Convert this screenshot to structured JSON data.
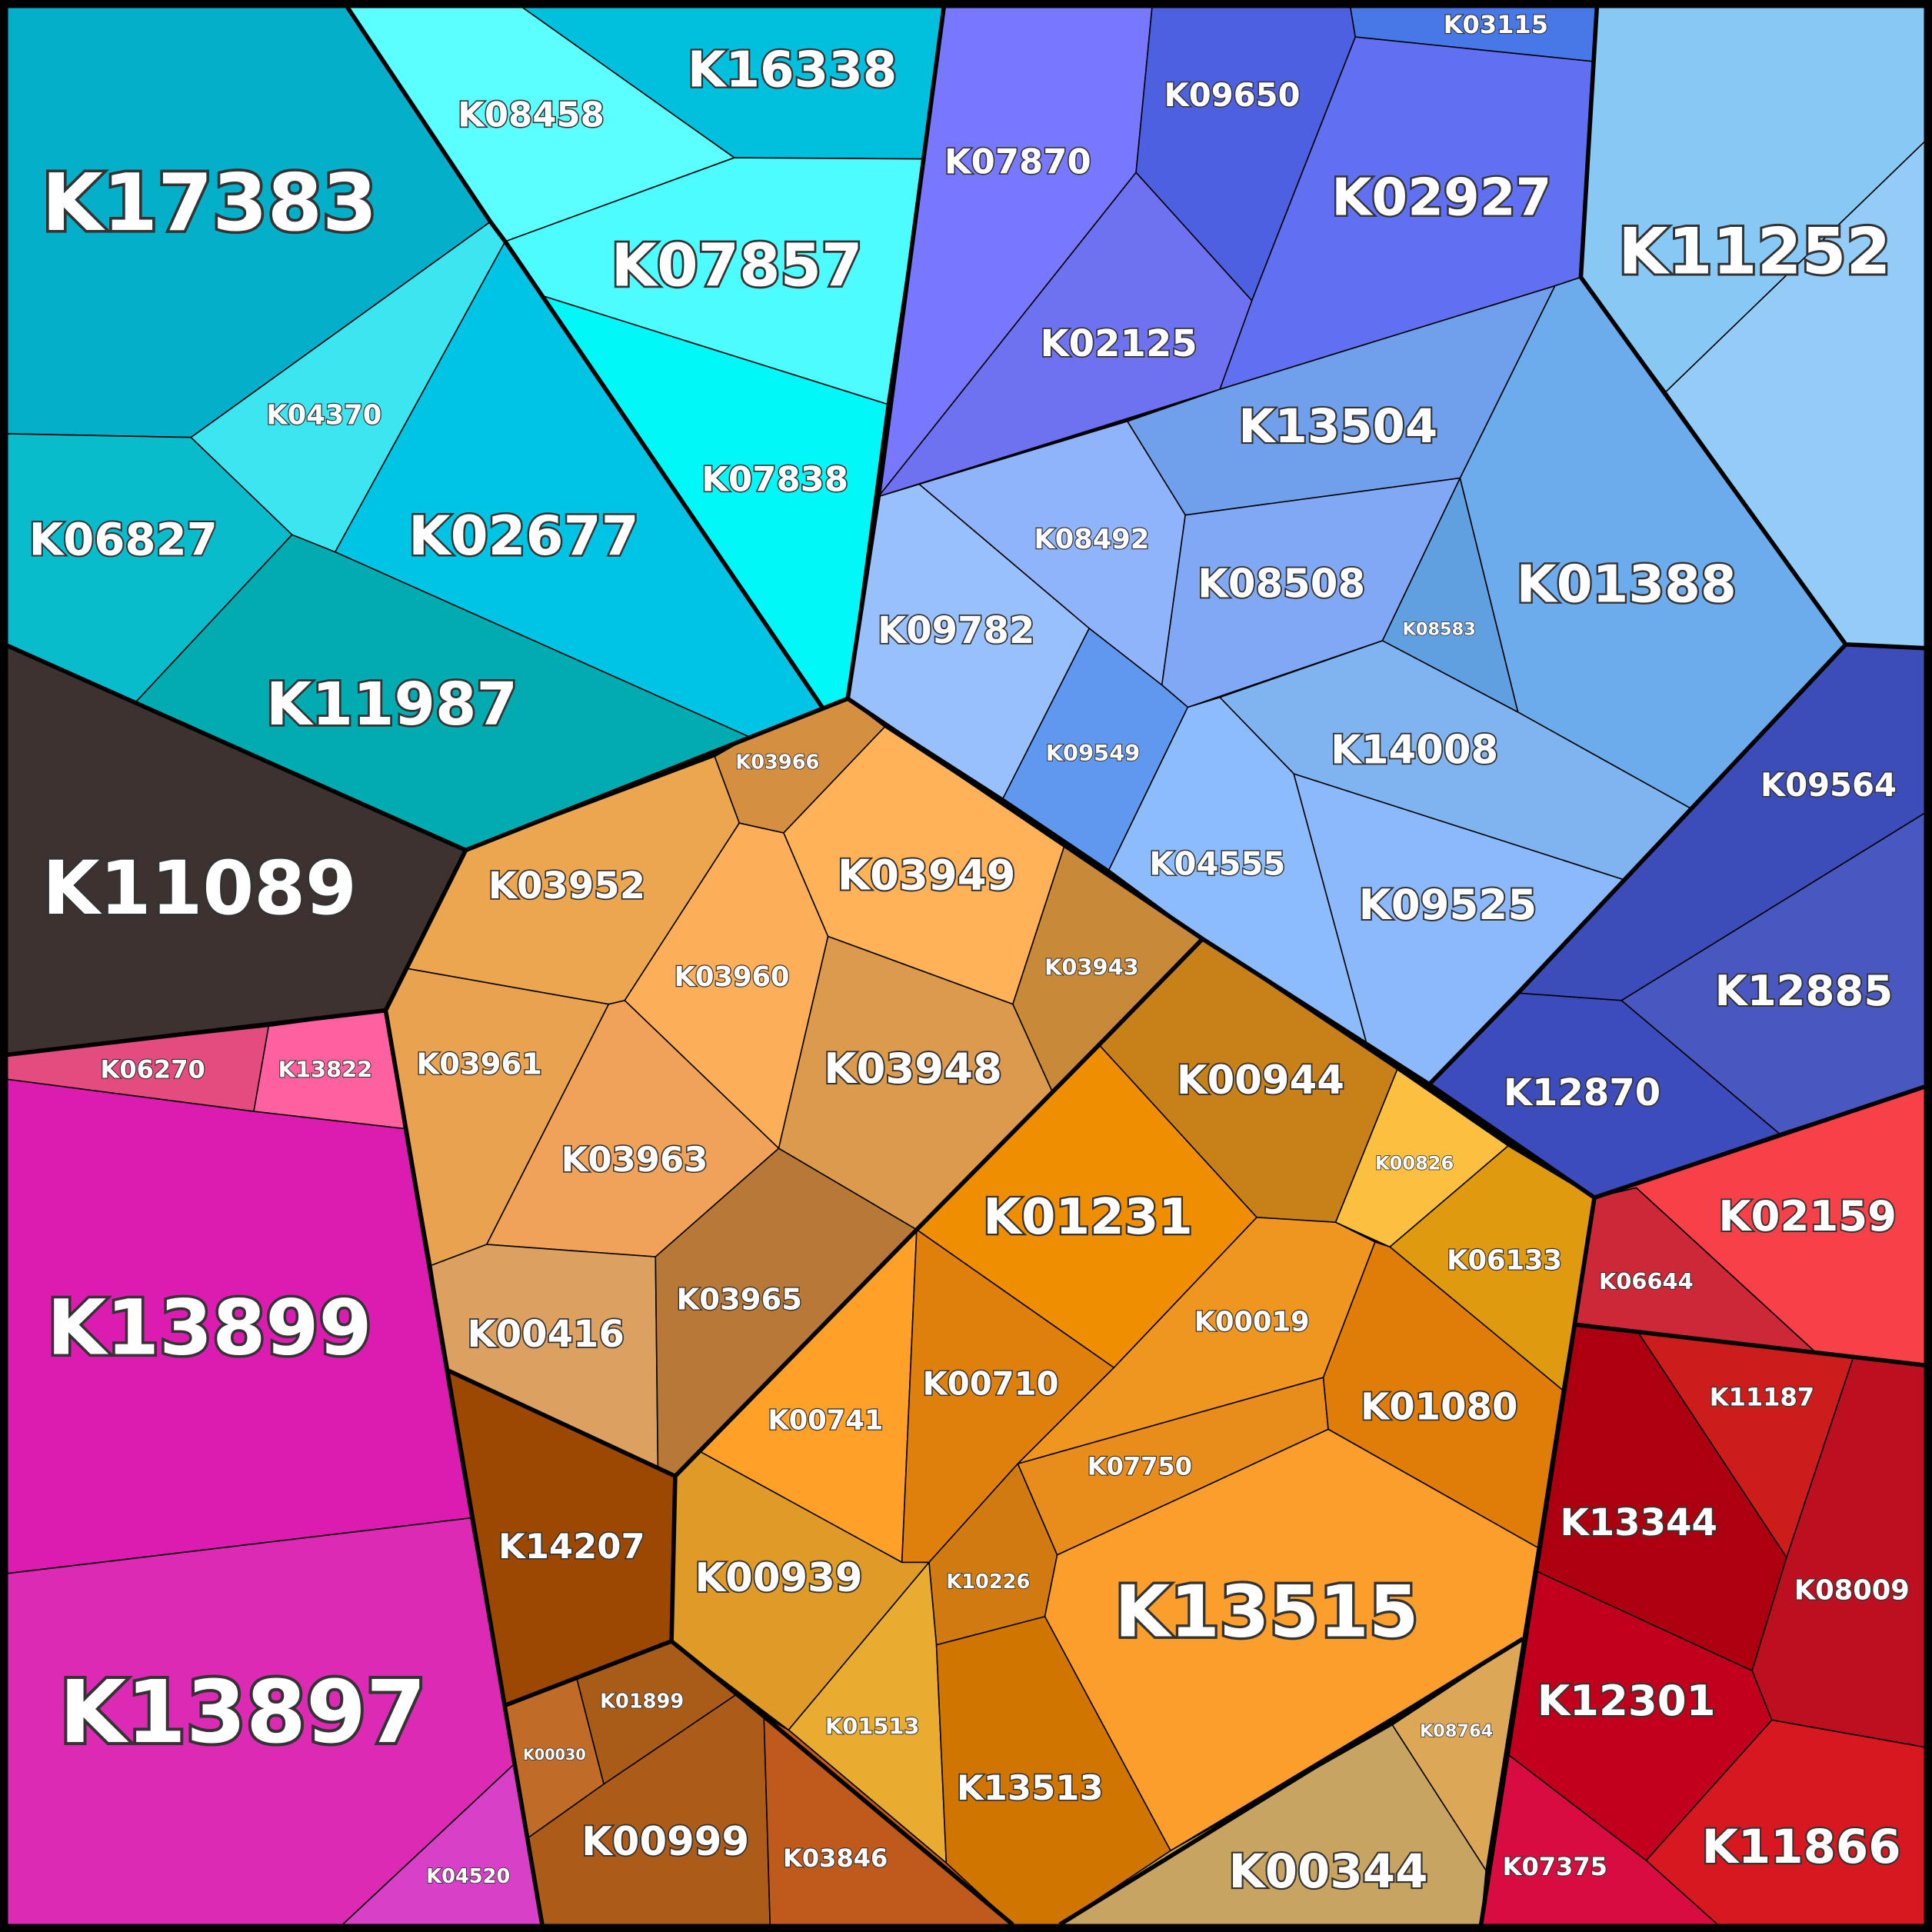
{
  "cells": [
    {
      "label": "K17383"
    },
    {
      "label": "K08458"
    },
    {
      "label": "K16338"
    },
    {
      "label": "K07857"
    },
    {
      "label": "K07838"
    },
    {
      "label": "K04370"
    },
    {
      "label": "K02677"
    },
    {
      "label": "K06827"
    },
    {
      "label": "K11987"
    },
    {
      "label": "K11089"
    },
    {
      "label": "K06270"
    },
    {
      "label": "K13822"
    },
    {
      "label": "K13899"
    },
    {
      "label": "K13897"
    },
    {
      "label": "K04520"
    },
    {
      "label": "K07870"
    },
    {
      "label": "K09650"
    },
    {
      "label": "K03115"
    },
    {
      "label": "K02927"
    },
    {
      "label": "K02125"
    },
    {
      "label": "K11252"
    },
    {
      "label": "K13504"
    },
    {
      "label": "K08492"
    },
    {
      "label": "K09782"
    },
    {
      "label": "K08508"
    },
    {
      "label": "K08583"
    },
    {
      "label": "K01388"
    },
    {
      "label": "K09549"
    },
    {
      "label": "K14008"
    },
    {
      "label": "K04555"
    },
    {
      "label": "K09525"
    },
    {
      "label": "K09564"
    },
    {
      "label": "K12885"
    },
    {
      "label": "K12870"
    },
    {
      "label": "K02159"
    },
    {
      "label": "K06644"
    },
    {
      "label": "K13344"
    },
    {
      "label": "K11187"
    },
    {
      "label": "K08009"
    },
    {
      "label": "K12301"
    },
    {
      "label": "K11866"
    },
    {
      "label": "K07375"
    },
    {
      "label": "K03966"
    },
    {
      "label": "K03952"
    },
    {
      "label": "K03949"
    },
    {
      "label": "K03960"
    },
    {
      "label": "K03943"
    },
    {
      "label": "K03961"
    },
    {
      "label": "K03963"
    },
    {
      "label": "K03948"
    },
    {
      "label": "K00416"
    },
    {
      "label": "K03965"
    },
    {
      "label": "K00944"
    },
    {
      "label": "K00826"
    },
    {
      "label": "K06133"
    },
    {
      "label": "K01231"
    },
    {
      "label": "K00741"
    },
    {
      "label": "K00710"
    },
    {
      "label": "K00019"
    },
    {
      "label": "K07750"
    },
    {
      "label": "K01080"
    },
    {
      "label": "K14207"
    },
    {
      "label": "K00939"
    },
    {
      "label": "K10226"
    },
    {
      "label": "K13515"
    },
    {
      "label": "K01513"
    },
    {
      "label": "K13513"
    },
    {
      "label": "K08764"
    },
    {
      "label": "K00344"
    },
    {
      "label": "K01899"
    },
    {
      "label": "K00030"
    },
    {
      "label": "K00999"
    },
    {
      "label": "K03846"
    }
  ]
}
